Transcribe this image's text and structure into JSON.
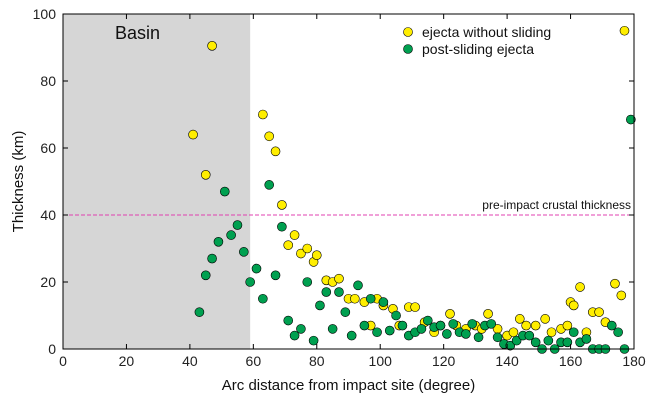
{
  "chart_data": {
    "type": "scatter",
    "xlabel": "Arc distance from impact site (degree)",
    "ylabel": "Thickness (km)",
    "xlim": [
      0,
      180
    ],
    "ylim": [
      0,
      100
    ],
    "xticks": [
      0,
      20,
      40,
      60,
      80,
      100,
      120,
      140,
      160,
      180
    ],
    "yticks": [
      0,
      20,
      40,
      60,
      80,
      100
    ],
    "grid": false,
    "legend_position": "top-right",
    "shaded_region": {
      "label": "Basin",
      "x_start": 0,
      "x_end": 59,
      "color": "#d6d6d6"
    },
    "reference_line": {
      "label": "pre-impact crustal thickness",
      "y": 40,
      "color": "#e040b0"
    },
    "series": [
      {
        "name": "ejecta without sliding",
        "color": "#ffee00",
        "points": [
          [
            41,
            64
          ],
          [
            45,
            52
          ],
          [
            47,
            90.5
          ],
          [
            63,
            70
          ],
          [
            65,
            63.5
          ],
          [
            67,
            59
          ],
          [
            69,
            43
          ],
          [
            71,
            31
          ],
          [
            73,
            34
          ],
          [
            75,
            28.5
          ],
          [
            77,
            30
          ],
          [
            79,
            26
          ],
          [
            80,
            28
          ],
          [
            83,
            20.5
          ],
          [
            85,
            20
          ],
          [
            87,
            21
          ],
          [
            90,
            15
          ],
          [
            92,
            15
          ],
          [
            95,
            14
          ],
          [
            97,
            7
          ],
          [
            99,
            15
          ],
          [
            101,
            13
          ],
          [
            104,
            12
          ],
          [
            106,
            7
          ],
          [
            109,
            12.5
          ],
          [
            111,
            12.5
          ],
          [
            114,
            8
          ],
          [
            117,
            5
          ],
          [
            119,
            7
          ],
          [
            122,
            10.5
          ],
          [
            124,
            7
          ],
          [
            127,
            6
          ],
          [
            130,
            7
          ],
          [
            132,
            6
          ],
          [
            134,
            10.5
          ],
          [
            137,
            6
          ],
          [
            140,
            4
          ],
          [
            142,
            5
          ],
          [
            144,
            9
          ],
          [
            146,
            7
          ],
          [
            149,
            7
          ],
          [
            152,
            9
          ],
          [
            154,
            5
          ],
          [
            157,
            6
          ],
          [
            159,
            7
          ],
          [
            160,
            14
          ],
          [
            161,
            13
          ],
          [
            163,
            18.5
          ],
          [
            165,
            5
          ],
          [
            167,
            11
          ],
          [
            169,
            11
          ],
          [
            171,
            8
          ],
          [
            174,
            19.5
          ],
          [
            176,
            16
          ],
          [
            177,
            95
          ]
        ]
      },
      {
        "name": "post-sliding ejecta",
        "color": "#00a050",
        "points": [
          [
            43,
            11
          ],
          [
            45,
            22
          ],
          [
            47,
            27
          ],
          [
            49,
            32
          ],
          [
            51,
            47
          ],
          [
            53,
            34
          ],
          [
            55,
            37
          ],
          [
            57,
            29
          ],
          [
            59,
            20
          ],
          [
            61,
            24
          ],
          [
            63,
            15
          ],
          [
            65,
            49
          ],
          [
            67,
            22
          ],
          [
            69,
            36.5
          ],
          [
            71,
            8.5
          ],
          [
            73,
            4
          ],
          [
            75,
            6
          ],
          [
            77,
            20
          ],
          [
            79,
            2.5
          ],
          [
            81,
            13
          ],
          [
            83,
            17
          ],
          [
            85,
            6
          ],
          [
            87,
            17
          ],
          [
            89,
            11
          ],
          [
            91,
            4
          ],
          [
            93,
            19
          ],
          [
            95,
            7
          ],
          [
            97,
            15
          ],
          [
            99,
            5
          ],
          [
            101,
            14
          ],
          [
            103,
            5.5
          ],
          [
            105,
            10
          ],
          [
            107,
            7
          ],
          [
            109,
            4
          ],
          [
            111,
            5
          ],
          [
            113,
            6
          ],
          [
            115,
            8.5
          ],
          [
            117,
            6.5
          ],
          [
            119,
            7
          ],
          [
            121,
            4.5
          ],
          [
            123,
            7.5
          ],
          [
            125,
            5
          ],
          [
            127,
            4.5
          ],
          [
            129,
            7.5
          ],
          [
            131,
            3.5
          ],
          [
            133,
            7
          ],
          [
            135,
            7.5
          ],
          [
            137,
            3.5
          ],
          [
            139,
            1.5
          ],
          [
            141,
            1
          ],
          [
            143,
            2.5
          ],
          [
            145,
            4
          ],
          [
            147,
            4
          ],
          [
            149,
            2
          ],
          [
            151,
            0
          ],
          [
            153,
            2.5
          ],
          [
            155,
            0
          ],
          [
            157,
            2
          ],
          [
            159,
            2
          ],
          [
            161,
            5
          ],
          [
            163,
            2
          ],
          [
            165,
            3
          ],
          [
            167,
            0
          ],
          [
            169,
            0
          ],
          [
            171,
            0
          ],
          [
            173,
            7
          ],
          [
            175,
            5
          ],
          [
            177,
            0
          ],
          [
            179,
            68.5
          ]
        ]
      }
    ]
  }
}
